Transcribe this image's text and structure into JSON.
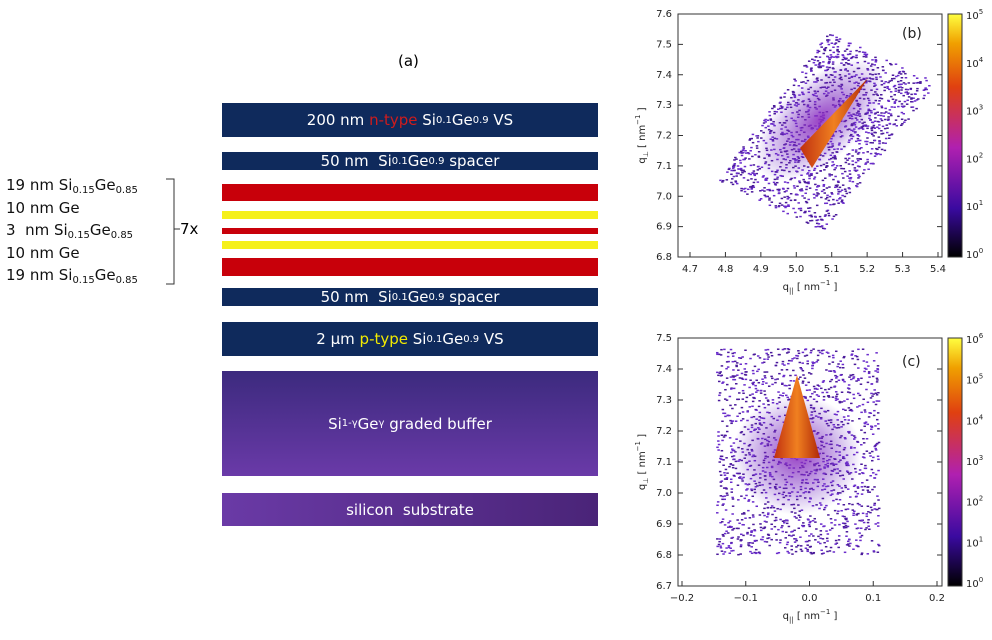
{
  "panel_a": {
    "label": "(a)",
    "layers": [
      {
        "label": [
          "200 nm ",
          {
            "text": "n-type",
            "color": "#d01c1c"
          },
          " Si",
          {
            "sub": "0.1"
          },
          "Ge",
          {
            "sub": "0.9"
          },
          " VS"
        ],
        "color": "#0f2a5c"
      },
      {
        "label": [
          "50 nm  Si",
          {
            "sub": "0.1"
          },
          "Ge",
          {
            "sub": "0.9"
          },
          " spacer"
        ],
        "color": "#0f2a5c"
      },
      {
        "color": "#c8000a"
      },
      {
        "color": "#f5f01a"
      },
      {
        "color": "#c8000a"
      },
      {
        "color": "#f5f01a"
      },
      {
        "color": "#c8000a"
      },
      {
        "label": [
          "50 nm  Si",
          {
            "sub": "0.1"
          },
          "Ge",
          {
            "sub": "0.9"
          },
          " spacer"
        ],
        "color": "#0f2a5c"
      },
      {
        "label": [
          "2 µm ",
          {
            "text": "p-type",
            "color": "#f2ea00"
          },
          " Si",
          {
            "sub": "0.1"
          },
          "Ge",
          {
            "sub": "0.9"
          },
          " VS"
        ],
        "color": "#0f2a5c"
      },
      {
        "label": [
          "Si",
          {
            "sub": "1-γ"
          },
          "Ge",
          {
            "sub": "γ"
          },
          " graded buffer"
        ],
        "color": [
          "#3c2a7e",
          "#6a3aa8"
        ]
      },
      {
        "label": [
          "silicon  substrate"
        ],
        "color": [
          "#6a3aa6",
          "#4a2478"
        ]
      }
    ],
    "stack_labels": [
      [
        "19 nm Si",
        {
          "sub": "0.15"
        },
        "Ge",
        {
          "sub": "0.85"
        }
      ],
      [
        "10 nm Ge"
      ],
      [
        "3  nm Si",
        {
          "sub": "0.15"
        },
        "Ge",
        {
          "sub": "0.85"
        }
      ],
      [
        "10 nm Ge"
      ],
      [
        "19 nm Si",
        {
          "sub": "0.15"
        },
        "Ge",
        {
          "sub": "0.85"
        }
      ]
    ],
    "repeat": "7x"
  },
  "panel_b": {
    "label": "(b)",
    "ylabel": [
      "q",
      {
        "sub": "⊥"
      },
      " [ nm",
      {
        "sup": "−1"
      },
      " ]"
    ],
    "xlabel": [
      "q",
      {
        "sub": "||"
      },
      " [ nm",
      {
        "sup": "−1"
      },
      " ]"
    ],
    "yticks": [
      "7.6",
      "7.5",
      "7.4",
      "7.3",
      "7.2",
      "7.1",
      "7.0",
      "6.9",
      "6.8"
    ],
    "xticks": [
      "4.7",
      "4.8",
      "4.9",
      "5.0",
      "5.1",
      "5.2",
      "5.3",
      "5.4"
    ],
    "colorbar": [
      {
        "base": "10",
        "exp": "5"
      },
      {
        "base": "10",
        "exp": "4"
      },
      {
        "base": "10",
        "exp": "3"
      },
      {
        "base": "10",
        "exp": "2"
      },
      {
        "base": "10",
        "exp": "1"
      },
      {
        "base": "10",
        "exp": "0"
      }
    ]
  },
  "panel_c": {
    "label": "(c)",
    "ylabel": [
      "q",
      {
        "sub": "⊥"
      },
      " [ nm",
      {
        "sup": "−1"
      },
      " ]"
    ],
    "xlabel": [
      "q",
      {
        "sub": "||"
      },
      " [ nm",
      {
        "sup": "−1"
      },
      " ]"
    ],
    "yticks": [
      "7.5",
      "7.4",
      "7.3",
      "7.2",
      "7.1",
      "7.0",
      "6.9",
      "6.8",
      "6.7"
    ],
    "xticks": [
      "−0.2",
      "−0.1",
      "0.0",
      "0.1",
      "0.2"
    ],
    "colorbar": [
      {
        "base": "10",
        "exp": "6"
      },
      {
        "base": "10",
        "exp": "5"
      },
      {
        "base": "10",
        "exp": "4"
      },
      {
        "base": "10",
        "exp": "3"
      },
      {
        "base": "10",
        "exp": "2"
      },
      {
        "base": "10",
        "exp": "1"
      },
      {
        "base": "10",
        "exp": "0"
      }
    ]
  }
}
